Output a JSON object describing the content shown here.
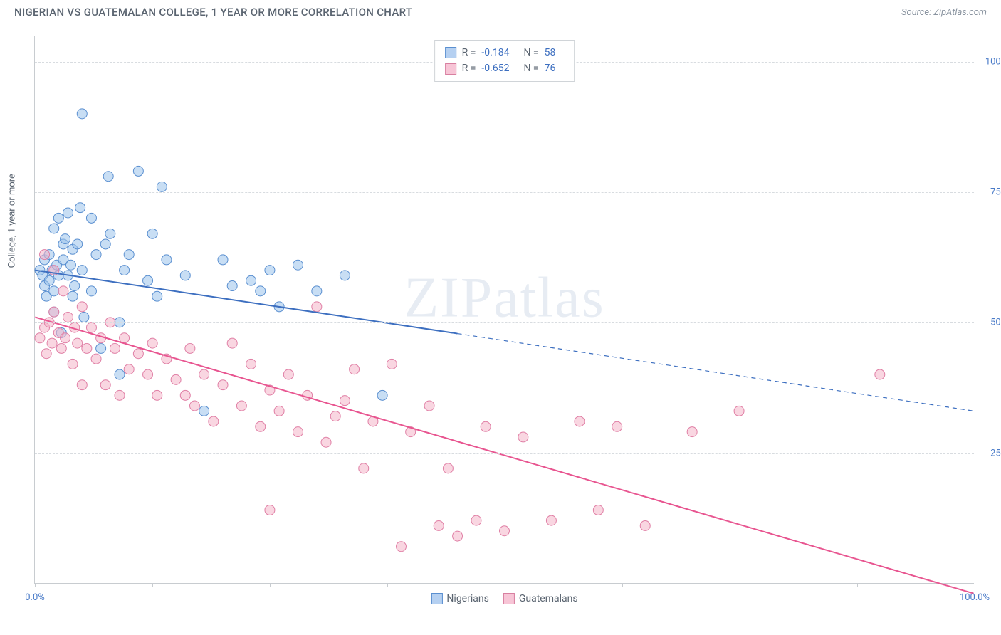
{
  "header": {
    "title": "NIGERIAN VS GUATEMALAN COLLEGE, 1 YEAR OR MORE CORRELATION CHART",
    "source": "Source: ZipAtlas.com"
  },
  "watermark": {
    "zip": "ZIP",
    "atlas": "atlas"
  },
  "chart": {
    "type": "scatter",
    "y_axis_label": "College, 1 year or more",
    "xlim": [
      0,
      100
    ],
    "ylim": [
      0,
      105
    ],
    "x_ticks": [
      0,
      12.5,
      25,
      37.5,
      50,
      62.5,
      75,
      87.5,
      100
    ],
    "x_tick_labels": {
      "0": "0.0%",
      "100": "100.0%"
    },
    "y_gridlines": [
      25,
      50,
      75,
      100,
      105
    ],
    "y_tick_labels": {
      "25": "25.0%",
      "50": "50.0%",
      "75": "75.0%",
      "100": "100.0%"
    },
    "background_color": "#ffffff",
    "grid_color": "#d8dce0",
    "axis_color": "#c8ccd0",
    "marker_radius": 7,
    "marker_opacity": 0.55,
    "series": [
      {
        "name": "Nigerians",
        "color_fill": "#9bc3eb",
        "color_stroke": "#5a8fd0",
        "R": "-0.184",
        "N": "58",
        "trend": {
          "x1": 0,
          "y1": 60,
          "x2": 45,
          "y2": 50,
          "solid_until_x": 45,
          "extend_to_x": 100,
          "extend_y": 33,
          "color": "#3d6fc0",
          "width": 2
        },
        "points": [
          [
            0.5,
            60
          ],
          [
            0.8,
            59
          ],
          [
            1,
            57
          ],
          [
            1,
            62
          ],
          [
            1.2,
            55
          ],
          [
            1.5,
            58
          ],
          [
            1.5,
            63
          ],
          [
            1.8,
            60
          ],
          [
            2,
            52
          ],
          [
            2,
            56
          ],
          [
            2,
            68
          ],
          [
            2.3,
            61
          ],
          [
            2.5,
            59
          ],
          [
            2.5,
            70
          ],
          [
            2.8,
            48
          ],
          [
            3,
            62
          ],
          [
            3,
            65
          ],
          [
            3.2,
            66
          ],
          [
            3.5,
            59
          ],
          [
            3.5,
            71
          ],
          [
            3.8,
            61
          ],
          [
            4,
            55
          ],
          [
            4,
            64
          ],
          [
            4.2,
            57
          ],
          [
            4.5,
            65
          ],
          [
            4.8,
            72
          ],
          [
            5,
            60
          ],
          [
            5,
            90
          ],
          [
            5.2,
            51
          ],
          [
            6,
            56
          ],
          [
            6,
            70
          ],
          [
            6.5,
            63
          ],
          [
            7,
            45
          ],
          [
            7.5,
            65
          ],
          [
            7.8,
            78
          ],
          [
            8,
            67
          ],
          [
            9,
            40
          ],
          [
            9,
            50
          ],
          [
            9.5,
            60
          ],
          [
            10,
            63
          ],
          [
            11,
            79
          ],
          [
            12,
            58
          ],
          [
            12.5,
            67
          ],
          [
            13,
            55
          ],
          [
            13.5,
            76
          ],
          [
            14,
            62
          ],
          [
            16,
            59
          ],
          [
            18,
            33
          ],
          [
            20,
            62
          ],
          [
            21,
            57
          ],
          [
            23,
            58
          ],
          [
            24,
            56
          ],
          [
            25,
            60
          ],
          [
            26,
            53
          ],
          [
            28,
            61
          ],
          [
            30,
            56
          ],
          [
            33,
            59
          ],
          [
            37,
            36
          ]
        ]
      },
      {
        "name": "Guatemalans",
        "color_fill": "#f4b5c9",
        "color_stroke": "#e07fa5",
        "R": "-0.652",
        "N": "76",
        "trend": {
          "x1": 0,
          "y1": 51,
          "x2": 100,
          "y2": -2,
          "solid_until_x": 100,
          "color": "#e85590",
          "width": 2
        },
        "points": [
          [
            0.5,
            47
          ],
          [
            1,
            49
          ],
          [
            1,
            63
          ],
          [
            1.2,
            44
          ],
          [
            1.5,
            50
          ],
          [
            1.8,
            46
          ],
          [
            2,
            60
          ],
          [
            2,
            52
          ],
          [
            2.5,
            48
          ],
          [
            2.8,
            45
          ],
          [
            3,
            56
          ],
          [
            3.2,
            47
          ],
          [
            3.5,
            51
          ],
          [
            4,
            42
          ],
          [
            4.2,
            49
          ],
          [
            4.5,
            46
          ],
          [
            5,
            38
          ],
          [
            5,
            53
          ],
          [
            5.5,
            45
          ],
          [
            6,
            49
          ],
          [
            6.5,
            43
          ],
          [
            7,
            47
          ],
          [
            7.5,
            38
          ],
          [
            8,
            50
          ],
          [
            8.5,
            45
          ],
          [
            9,
            36
          ],
          [
            9.5,
            47
          ],
          [
            10,
            41
          ],
          [
            11,
            44
          ],
          [
            12,
            40
          ],
          [
            12.5,
            46
          ],
          [
            13,
            36
          ],
          [
            14,
            43
          ],
          [
            15,
            39
          ],
          [
            16,
            36
          ],
          [
            16.5,
            45
          ],
          [
            17,
            34
          ],
          [
            18,
            40
          ],
          [
            19,
            31
          ],
          [
            20,
            38
          ],
          [
            21,
            46
          ],
          [
            22,
            34
          ],
          [
            23,
            42
          ],
          [
            24,
            30
          ],
          [
            25,
            37
          ],
          [
            25,
            14
          ],
          [
            26,
            33
          ],
          [
            27,
            40
          ],
          [
            28,
            29
          ],
          [
            29,
            36
          ],
          [
            30,
            53
          ],
          [
            31,
            27
          ],
          [
            32,
            32
          ],
          [
            33,
            35
          ],
          [
            34,
            41
          ],
          [
            35,
            22
          ],
          [
            36,
            31
          ],
          [
            38,
            42
          ],
          [
            39,
            7
          ],
          [
            40,
            29
          ],
          [
            42,
            34
          ],
          [
            43,
            11
          ],
          [
            44,
            22
          ],
          [
            45,
            9
          ],
          [
            47,
            12
          ],
          [
            48,
            30
          ],
          [
            50,
            10
          ],
          [
            52,
            28
          ],
          [
            55,
            12
          ],
          [
            58,
            31
          ],
          [
            60,
            14
          ],
          [
            62,
            30
          ],
          [
            65,
            11
          ],
          [
            70,
            29
          ],
          [
            75,
            33
          ],
          [
            90,
            40
          ]
        ]
      }
    ],
    "legend_top": {
      "r_label": "R =",
      "n_label": "N ="
    },
    "legend_bottom": [
      {
        "label": "Nigerians",
        "swatch": "blue"
      },
      {
        "label": "Guatemalans",
        "swatch": "pink"
      }
    ]
  }
}
